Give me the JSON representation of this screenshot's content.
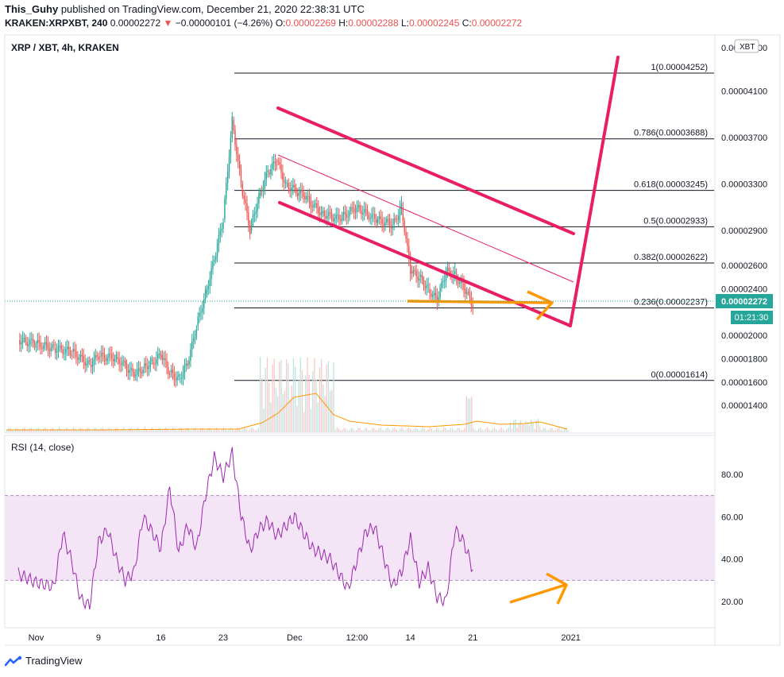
{
  "header": {
    "author": "This_Guhy",
    "published_text": "published on TradingView.com, December 21, 2020 22:38:31 UTC",
    "symbol": "KRAKEN:XRPXBT, 240",
    "last": "0.00002272",
    "change": "−0.00000101 (−4.26%)",
    "o_label": "O:",
    "o": "0.00002269",
    "h_label": "H:",
    "h": "0.00002288",
    "l_label": "L:",
    "l": "0.00002245",
    "c_label": "C:",
    "c": "0.00002272"
  },
  "footer": {
    "brand": "TradingView"
  },
  "chart_data": {
    "type": "line",
    "title": "XRP / XBT, 4h, KRAKEN",
    "currency_badge": "XBT",
    "last_price_label": "0.00002272",
    "countdown_label": "01:21:30",
    "price_axis_ticks": [
      "0.00004500",
      "0.00004100",
      "0.00003700",
      "0.00003300",
      "0.00002900",
      "0.00002600",
      "0.00002400",
      "0.00002000",
      "0.00001800",
      "0.00001600",
      "0.00001400"
    ],
    "price_axis_tick_values": [
      4.5e-05,
      4.1e-05,
      3.7e-05,
      3.3e-05,
      2.9e-05,
      2.6e-05,
      2.4e-05,
      2e-05,
      1.8e-05,
      1.6e-05,
      1.4e-05
    ],
    "x_ticks": [
      "Nov",
      "9",
      "16",
      "23",
      "Dec",
      "12:00",
      "14",
      "21",
      "2021"
    ],
    "fib_levels": [
      {
        "label": "1(0.00004252)",
        "value": 4.252e-05
      },
      {
        "label": "0.786(0.00003688)",
        "value": 3.688e-05
      },
      {
        "label": "0.618(0.00003245)",
        "value": 3.245e-05
      },
      {
        "label": "0.5(0.00002933)",
        "value": 2.933e-05
      },
      {
        "label": "0.382(0.00002622)",
        "value": 2.622e-05
      },
      {
        "label": "0.236(0.00002237)",
        "value": 2.237e-05
      },
      {
        "label": "0(0.00001614)",
        "value": 1.614e-05
      }
    ],
    "price_series_approx": [
      [
        "Oct 31",
        1.96e-05
      ],
      [
        "Nov 2",
        1.93e-05
      ],
      [
        "Nov 4",
        1.89e-05
      ],
      [
        "Nov 6",
        1.86e-05
      ],
      [
        "Nov 8",
        1.75e-05
      ],
      [
        "Nov 9",
        1.82e-05
      ],
      [
        "Nov 11",
        1.81e-05
      ],
      [
        "Nov 13",
        1.66e-05
      ],
      [
        "Nov 14",
        1.72e-05
      ],
      [
        "Nov 15",
        1.77e-05
      ],
      [
        "Nov 16",
        1.83e-05
      ],
      [
        "Nov 17",
        1.68e-05
      ],
      [
        "Nov 18",
        1.63e-05
      ],
      [
        "Nov 19",
        1.75e-05
      ],
      [
        "Nov 20",
        2.08e-05
      ],
      [
        "Nov 21",
        2.36e-05
      ],
      [
        "Nov 22",
        2.65e-05
      ],
      [
        "Nov 23",
        3e-05
      ],
      [
        "Nov 24",
        3.85e-05
      ],
      [
        "Nov 25",
        3.3e-05
      ],
      [
        "Nov 26",
        2.9e-05
      ],
      [
        "Nov 27",
        3.2e-05
      ],
      [
        "Nov 28",
        3.4e-05
      ],
      [
        "Nov 29",
        3.5e-05
      ],
      [
        "Nov 30",
        3.3e-05
      ],
      [
        "Dec 2",
        3.2e-05
      ],
      [
        "Dec 4",
        3.05e-05
      ],
      [
        "Dec 6",
        3e-05
      ],
      [
        "Dec 8",
        3.1e-05
      ],
      [
        "Dec 10",
        3e-05
      ],
      [
        "Dec 12",
        2.95e-05
      ],
      [
        "Dec 13",
        3.1e-05
      ],
      [
        "Dec 14",
        2.55e-05
      ],
      [
        "Dec 15",
        2.5e-05
      ],
      [
        "Dec 16",
        2.4e-05
      ],
      [
        "Dec 17",
        2.3e-05
      ],
      [
        "Dec 18",
        2.55e-05
      ],
      [
        "Dec 19",
        2.52e-05
      ],
      [
        "Dec 20",
        2.4e-05
      ],
      [
        "Dec 21",
        2.27e-05
      ]
    ],
    "rsi": {
      "label": "RSI (14, close)",
      "ticks": [
        "80.00",
        "60.00",
        "40.00",
        "20.00"
      ],
      "tick_values": [
        80,
        60,
        40,
        20
      ],
      "band": [
        30,
        70
      ],
      "series_approx": [
        [
          "Oct 31",
          33
        ],
        [
          "Nov 2",
          29
        ],
        [
          "Nov 4",
          27
        ],
        [
          "Nov 5",
          52
        ],
        [
          "Nov 6",
          39
        ],
        [
          "Nov 7",
          21
        ],
        [
          "Nov 8",
          18
        ],
        [
          "Nov 9",
          48
        ],
        [
          "Nov 10",
          54
        ],
        [
          "Nov 11",
          40
        ],
        [
          "Nov 12",
          30
        ],
        [
          "Nov 13",
          34
        ],
        [
          "Nov 14",
          60
        ],
        [
          "Nov 15",
          53
        ],
        [
          "Nov 16",
          45
        ],
        [
          "Nov 17",
          74
        ],
        [
          "Nov 18",
          43
        ],
        [
          "Nov 19",
          56
        ],
        [
          "Nov 20",
          45
        ],
        [
          "Nov 21",
          70
        ],
        [
          "Nov 22",
          88
        ],
        [
          "Nov 23",
          79
        ],
        [
          "Nov 24",
          90
        ],
        [
          "Nov 25",
          61
        ],
        [
          "Nov 26",
          44
        ],
        [
          "Nov 27",
          54
        ],
        [
          "Nov 28",
          58
        ],
        [
          "Nov 29",
          51
        ],
        [
          "Dec 1",
          60
        ],
        [
          "Dec 3",
          45
        ],
        [
          "Dec 5",
          40
        ],
        [
          "Dec 7",
          26
        ],
        [
          "Dec 9",
          53
        ],
        [
          "Dec 10",
          55
        ],
        [
          "Dec 11",
          41
        ],
        [
          "Dec 12",
          27
        ],
        [
          "Dec 13",
          34
        ],
        [
          "Dec 14",
          50
        ],
        [
          "Dec 15",
          29
        ],
        [
          "Dec 16",
          36
        ],
        [
          "Dec 17",
          22
        ],
        [
          "Dec 18",
          20
        ],
        [
          "Dec 19",
          54
        ],
        [
          "Dec 20",
          48
        ],
        [
          "Dec 21",
          35
        ]
      ]
    },
    "colors": {
      "up": "#26a69a",
      "down": "#ef5350",
      "channel": "#e91e63",
      "arrow": "#ff9800",
      "rsi": "#9c27b0",
      "rsi_band": "#f3e5f5",
      "volume_ma": "#ff9800",
      "last_price": "#26a69a"
    }
  }
}
